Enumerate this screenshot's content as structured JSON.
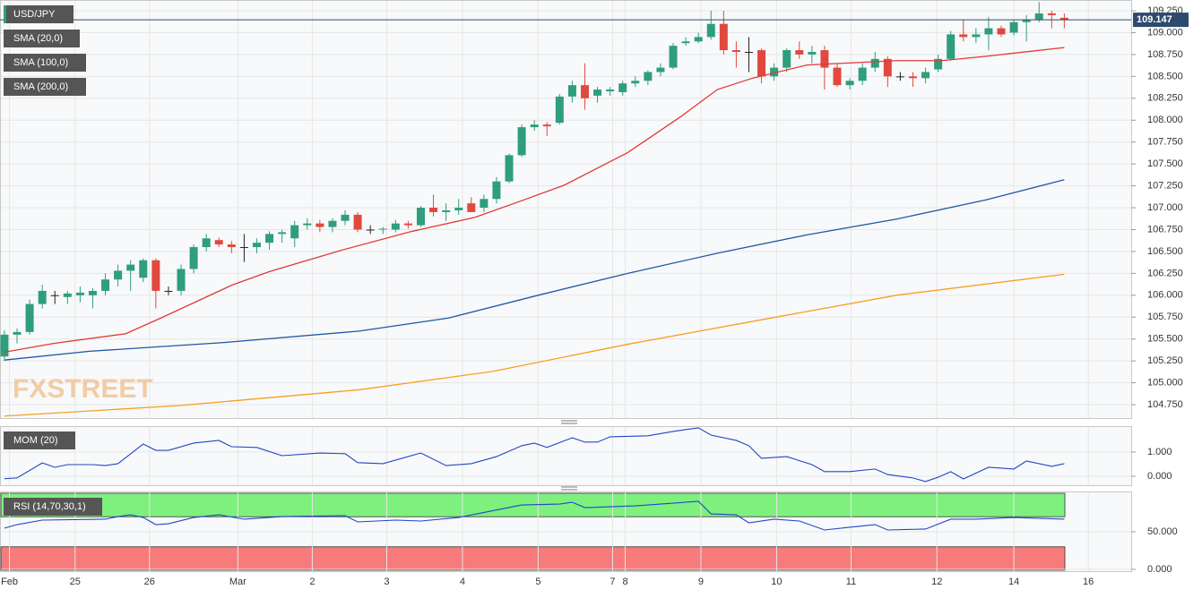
{
  "chart_data": [
    {
      "type": "candlestick",
      "name": "USD/JPY",
      "watermark": "FXSTREET",
      "up_color": "#2e9e7c",
      "down_color": "#e0493f",
      "doji_color": "#222222",
      "grid": true,
      "ylim": [
        104.597,
        109.373
      ],
      "yticks": [
        {
          "value": 109.25,
          "label": "109.250"
        },
        {
          "value": 109,
          "label": "109.000"
        },
        {
          "value": 108.75,
          "label": "108.750"
        },
        {
          "value": 108.5,
          "label": "108.500"
        },
        {
          "value": 108.25,
          "label": "108.250"
        },
        {
          "value": 108,
          "label": "108.000"
        },
        {
          "value": 107.75,
          "label": "107.750"
        },
        {
          "value": 107.5,
          "label": "107.500"
        },
        {
          "value": 107.25,
          "label": "107.250"
        },
        {
          "value": 107,
          "label": "107.000"
        },
        {
          "value": 106.75,
          "label": "106.750"
        },
        {
          "value": 106.5,
          "label": "106.500"
        },
        {
          "value": 106.25,
          "label": "106.250"
        },
        {
          "value": 106,
          "label": "106.000"
        },
        {
          "value": 105.75,
          "label": "105.750"
        },
        {
          "value": 105.5,
          "label": "105.500"
        },
        {
          "value": 105.25,
          "label": "105.250"
        },
        {
          "value": 105,
          "label": "105.000"
        },
        {
          "value": 104.75,
          "label": "104.750"
        }
      ],
      "candles": [
        [
          105.3,
          105.6,
          105.25,
          105.55
        ],
        [
          105.55,
          105.62,
          105.45,
          105.58
        ],
        [
          105.58,
          105.95,
          105.55,
          105.9
        ],
        [
          105.9,
          106.12,
          105.85,
          106.05
        ],
        [
          106.0,
          106.05,
          105.9,
          106.0
        ],
        [
          105.98,
          106.05,
          105.9,
          106.02
        ],
        [
          106.0,
          106.1,
          105.92,
          106.03
        ],
        [
          106.0,
          106.08,
          105.85,
          106.05
        ],
        [
          106.05,
          106.25,
          106.0,
          106.18
        ],
        [
          106.18,
          106.35,
          106.1,
          106.28
        ],
        [
          106.28,
          106.4,
          106.05,
          106.35
        ],
        [
          106.2,
          106.42,
          106.15,
          106.4
        ],
        [
          106.4,
          106.42,
          105.85,
          106.05
        ],
        [
          106.05,
          106.1,
          106.0,
          106.05
        ],
        [
          106.05,
          106.35,
          106.0,
          106.3
        ],
        [
          106.3,
          106.58,
          106.25,
          106.55
        ],
        [
          106.55,
          106.7,
          106.5,
          106.65
        ],
        [
          106.63,
          106.66,
          106.55,
          106.58
        ],
        [
          106.58,
          106.62,
          106.48,
          106.55
        ],
        [
          106.55,
          106.7,
          106.38,
          106.55
        ],
        [
          106.55,
          106.65,
          106.48,
          106.6
        ],
        [
          106.6,
          106.73,
          106.52,
          106.7
        ],
        [
          106.7,
          106.75,
          106.6,
          106.72
        ],
        [
          106.65,
          106.85,
          106.55,
          106.8
        ],
        [
          106.8,
          106.88,
          106.75,
          106.82
        ],
        [
          106.82,
          106.86,
          106.72,
          106.78
        ],
        [
          106.78,
          106.88,
          106.72,
          106.85
        ],
        [
          106.85,
          106.97,
          106.8,
          106.92
        ],
        [
          106.92,
          106.95,
          106.72,
          106.75
        ],
        [
          106.75,
          106.8,
          106.7,
          106.75
        ],
        [
          106.75,
          106.78,
          106.7,
          106.76
        ],
        [
          106.75,
          106.86,
          106.72,
          106.82
        ],
        [
          106.82,
          106.85,
          106.76,
          106.8
        ],
        [
          106.8,
          107.02,
          106.78,
          107.0
        ],
        [
          107.0,
          107.15,
          106.9,
          106.95
        ],
        [
          106.95,
          107.05,
          106.85,
          106.97
        ],
        [
          106.97,
          107.1,
          106.92,
          107.0
        ],
        [
          107.05,
          107.12,
          106.98,
          106.95
        ],
        [
          107.0,
          107.15,
          106.95,
          107.1
        ],
        [
          107.1,
          107.35,
          107.05,
          107.3
        ],
        [
          107.3,
          107.62,
          107.28,
          107.6
        ],
        [
          107.6,
          107.95,
          107.58,
          107.92
        ],
        [
          107.92,
          108.0,
          107.88,
          107.95
        ],
        [
          107.95,
          107.98,
          107.82,
          107.93
        ],
        [
          107.97,
          108.3,
          107.95,
          108.27
        ],
        [
          108.27,
          108.45,
          108.2,
          108.4
        ],
        [
          108.4,
          108.65,
          108.12,
          108.25
        ],
        [
          108.28,
          108.38,
          108.2,
          108.35
        ],
        [
          108.33,
          108.38,
          108.28,
          108.35
        ],
        [
          108.32,
          108.45,
          108.28,
          108.42
        ],
        [
          108.42,
          108.5,
          108.38,
          108.45
        ],
        [
          108.45,
          108.57,
          108.4,
          108.55
        ],
        [
          108.55,
          108.65,
          108.5,
          108.6
        ],
        [
          108.6,
          108.88,
          108.58,
          108.85
        ],
        [
          108.88,
          108.95,
          108.85,
          108.9
        ],
        [
          108.9,
          109.0,
          108.88,
          108.95
        ],
        [
          108.95,
          109.25,
          108.92,
          109.1
        ],
        [
          109.1,
          109.25,
          108.75,
          108.8
        ],
        [
          108.8,
          108.9,
          108.6,
          108.78
        ],
        [
          108.78,
          108.95,
          108.55,
          108.78
        ],
        [
          108.8,
          108.82,
          108.42,
          108.5
        ],
        [
          108.5,
          108.65,
          108.45,
          108.6
        ],
        [
          108.6,
          108.82,
          108.55,
          108.8
        ],
        [
          108.8,
          108.9,
          108.7,
          108.75
        ],
        [
          108.75,
          108.85,
          108.65,
          108.78
        ],
        [
          108.8,
          108.85,
          108.35,
          108.6
        ],
        [
          108.6,
          108.65,
          108.38,
          108.4
        ],
        [
          108.4,
          108.48,
          108.35,
          108.45
        ],
        [
          108.45,
          108.65,
          108.4,
          108.6
        ],
        [
          108.6,
          108.78,
          108.55,
          108.7
        ],
        [
          108.7,
          108.73,
          108.38,
          108.5
        ],
        [
          108.5,
          108.55,
          108.45,
          108.5
        ],
        [
          108.5,
          108.55,
          108.38,
          108.48
        ],
        [
          108.48,
          108.6,
          108.42,
          108.55
        ],
        [
          108.58,
          108.75,
          108.55,
          108.7
        ],
        [
          108.7,
          109.02,
          108.68,
          108.98
        ],
        [
          108.98,
          109.15,
          108.9,
          108.95
        ],
        [
          108.95,
          109.05,
          108.88,
          108.98
        ],
        [
          108.98,
          109.18,
          108.8,
          109.05
        ],
        [
          109.05,
          109.08,
          108.95,
          108.98
        ],
        [
          109.0,
          109.15,
          108.97,
          109.12
        ],
        [
          109.12,
          109.2,
          108.9,
          109.15
        ],
        [
          109.15,
          109.35,
          109.12,
          109.22
        ],
        [
          109.22,
          109.25,
          109.05,
          109.2
        ],
        [
          109.17,
          109.22,
          109.05,
          109.147
        ]
      ],
      "series": [
        {
          "name": "SMA (20,0)",
          "color": "#e0393a",
          "x": [
            0,
            3.9,
            9.6,
            12.4,
            18.1,
            21,
            26.6,
            32.3,
            37.3,
            40.8,
            44.4,
            49.4,
            53.6,
            56.5,
            59.3,
            63.6,
            70.7,
            74.3,
            77.8,
            84
          ],
          "values": [
            105.35,
            105.45,
            105.56,
            105.74,
            106.12,
            106.27,
            106.51,
            106.73,
            106.89,
            107.07,
            107.26,
            107.63,
            108.04,
            108.35,
            108.48,
            108.63,
            108.68,
            108.68,
            108.73,
            108.83
          ]
        },
        {
          "name": "SMA (100,0)",
          "color": "#2157a6",
          "x": [
            0,
            6.75,
            17.4,
            28.1,
            35.2,
            42.3,
            49.4,
            56.5,
            63.6,
            70.7,
            77.8,
            84
          ],
          "values": [
            105.26,
            105.36,
            105.46,
            105.59,
            105.74,
            106.0,
            106.25,
            106.48,
            106.69,
            106.87,
            107.09,
            107.32
          ]
        },
        {
          "name": "SMA (200,0)",
          "color": "#f5a020",
          "x": [
            0,
            13.9,
            28.1,
            38.7,
            49.4,
            60,
            70.7,
            84
          ],
          "values": [
            104.62,
            104.74,
            104.92,
            105.13,
            105.44,
            105.72,
            106.0,
            106.24
          ]
        }
      ]
    },
    {
      "type": "line",
      "name": "MOM (20)",
      "color": "#2146c7",
      "grid": true,
      "ylim": [
        -0.37,
        2.07
      ],
      "yticks": [
        {
          "value": 1,
          "label": "1.000"
        },
        {
          "value": 0,
          "label": "0.000"
        }
      ],
      "x": [
        0,
        1,
        3,
        4,
        5,
        7,
        8,
        9,
        11,
        12,
        13,
        15,
        17,
        18,
        20,
        22,
        25,
        27,
        28,
        30,
        33,
        35,
        37,
        39,
        41,
        42,
        43,
        45,
        46,
        47,
        48,
        51,
        53,
        55,
        56,
        58,
        59,
        60,
        62,
        64,
        65,
        67,
        69,
        70,
        72,
        73,
        74,
        75,
        76,
        78,
        80,
        81,
        83,
        84
      ],
      "values": [
        -0.1,
        -0.07,
        0.55,
        0.37,
        0.48,
        0.48,
        0.44,
        0.52,
        1.33,
        1.07,
        1.07,
        1.37,
        1.48,
        1.22,
        1.19,
        0.85,
        0.96,
        0.93,
        0.56,
        0.52,
        0.96,
        0.44,
        0.52,
        0.81,
        1.26,
        1.37,
        1.19,
        1.59,
        1.41,
        1.41,
        1.63,
        1.67,
        1.85,
        2.0,
        1.7,
        1.48,
        1.26,
        0.74,
        0.81,
        0.48,
        0.19,
        0.19,
        0.3,
        0.07,
        -0.07,
        -0.22,
        -0.04,
        0.19,
        -0.11,
        0.37,
        0.3,
        0.63,
        0.41,
        0.52
      ]
    },
    {
      "type": "line",
      "name": "RSI (14,70,30,1)",
      "color": "#2146c7",
      "grid": true,
      "ylim": [
        -2.4,
        103.6
      ],
      "overbought": 70,
      "oversold": 30,
      "overbought_color": "#7ef07e",
      "oversold_color": "#f77b7b",
      "yticks": [
        {
          "value": 50,
          "label": "50.000"
        },
        {
          "value": 0,
          "label": "0.000"
        }
      ],
      "x": [
        0,
        1,
        3,
        8,
        9,
        10,
        11,
        12,
        13,
        15,
        17,
        19,
        22,
        27,
        28,
        31,
        33,
        36,
        41,
        44,
        45,
        46,
        50,
        55,
        56,
        58,
        59,
        61,
        63,
        65,
        67,
        69,
        70,
        73,
        75,
        77,
        80,
        84
      ],
      "values": [
        54.8,
        59.5,
        65.5,
        66.7,
        70.2,
        72.6,
        69,
        59.5,
        60.7,
        69,
        72.6,
        66.7,
        70.2,
        71.4,
        63.1,
        65.5,
        64.3,
        69,
        85.7,
        86.9,
        89.3,
        82.1,
        84.5,
        90.5,
        73.8,
        72.6,
        61.9,
        66.7,
        64.3,
        52.4,
        56,
        59.5,
        52.4,
        53.6,
        66.7,
        66.7,
        69,
        66.7
      ],
      "xlim": [
        -0.35,
        89.3
      ],
      "xticks": [
        {
          "value": 0.4,
          "label": "Feb"
        },
        {
          "value": 5.6,
          "label": "25"
        },
        {
          "value": 11.5,
          "label": "26"
        },
        {
          "value": 18.5,
          "label": "Mar"
        },
        {
          "value": 24.4,
          "label": "2"
        },
        {
          "value": 30.3,
          "label": "3"
        },
        {
          "value": 36.3,
          "label": "4"
        },
        {
          "value": 42.3,
          "label": "5"
        },
        {
          "value": 48.2,
          "label": "7"
        },
        {
          "value": 49.2,
          "label": "8"
        },
        {
          "value": 55.2,
          "label": "9"
        },
        {
          "value": 61.2,
          "label": "10"
        },
        {
          "value": 67.1,
          "label": "11"
        },
        {
          "value": 73.9,
          "label": "12"
        },
        {
          "value": 80.0,
          "label": "14"
        },
        {
          "value": 85.9,
          "label": "16"
        }
      ]
    }
  ]
}
